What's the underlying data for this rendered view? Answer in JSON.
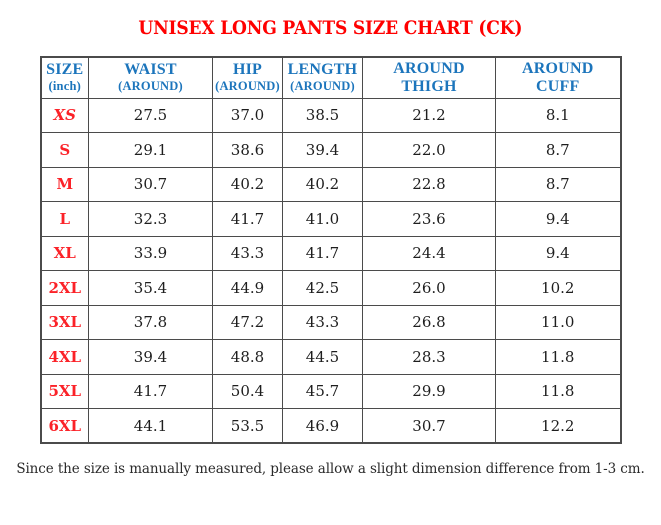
{
  "title": "UNISEX LONG PANTS SIZE CHART (CK)",
  "footer_note": "Since the size is manually measured, please allow a slight dimension difference from 1-3 cm.",
  "colors": {
    "title_red": "#ff0000",
    "size_red": "#fb2228",
    "header_blue": "#1c75bc",
    "border_gray": "#4b4b4b",
    "body_text": "#1e1e1e",
    "footer_text": "#2a2a2a"
  },
  "table": {
    "columns": [
      "size",
      "waist",
      "hip",
      "length",
      "around_thigh",
      "around_cuff"
    ],
    "headers": [
      {
        "line1": "SIZE",
        "line2": "(inch)",
        "sub_small": true
      },
      {
        "line1": "WAIST",
        "line2": "(AROUND)",
        "sub_small": true
      },
      {
        "line1": "HIP",
        "line2": "(AROUND)",
        "sub_small": true
      },
      {
        "line1": "LENGTH",
        "line2": "(AROUND)",
        "sub_small": true
      },
      {
        "line1": "AROUND",
        "line2": "THIGH",
        "sub_small": false
      },
      {
        "line1": "AROUND",
        "line2": "CUFF",
        "sub_small": false
      }
    ],
    "rows": [
      {
        "size": "XS",
        "italic": true,
        "values": [
          "27.5",
          "37.0",
          "38.5",
          "21.2",
          "8.1"
        ]
      },
      {
        "size": "S",
        "italic": false,
        "values": [
          "29.1",
          "38.6",
          "39.4",
          "22.0",
          "8.7"
        ]
      },
      {
        "size": "M",
        "italic": false,
        "values": [
          "30.7",
          "40.2",
          "40.2",
          "22.8",
          "8.7"
        ]
      },
      {
        "size": "L",
        "italic": false,
        "values": [
          "32.3",
          "41.7",
          "41.0",
          "23.6",
          "9.4"
        ]
      },
      {
        "size": "XL",
        "italic": false,
        "values": [
          "33.9",
          "43.3",
          "41.7",
          "24.4",
          "9.4"
        ]
      },
      {
        "size": "2XL",
        "italic": false,
        "values": [
          "35.4",
          "44.9",
          "42.5",
          "26.0",
          "10.2"
        ]
      },
      {
        "size": "3XL",
        "italic": false,
        "values": [
          "37.8",
          "47.2",
          "43.3",
          "26.8",
          "11.0"
        ]
      },
      {
        "size": "4XL",
        "italic": false,
        "values": [
          "39.4",
          "48.8",
          "44.5",
          "28.3",
          "11.8"
        ]
      },
      {
        "size": "5XL",
        "italic": false,
        "values": [
          "41.7",
          "50.4",
          "45.7",
          "29.9",
          "11.8"
        ]
      },
      {
        "size": "6XL",
        "italic": false,
        "values": [
          "44.1",
          "53.5",
          "46.9",
          "30.7",
          "12.2"
        ]
      }
    ]
  },
  "chart_data": {
    "type": "table",
    "title": "UNISEX LONG PANTS SIZE CHART (CK)",
    "unit": "inch",
    "columns": [
      "SIZE (inch)",
      "WAIST (AROUND)",
      "HIP (AROUND)",
      "LENGTH (AROUND)",
      "AROUND THIGH",
      "AROUND CUFF"
    ],
    "rows": [
      [
        "XS",
        27.5,
        37.0,
        38.5,
        21.2,
        8.1
      ],
      [
        "S",
        29.1,
        38.6,
        39.4,
        22.0,
        8.7
      ],
      [
        "M",
        30.7,
        40.2,
        40.2,
        22.8,
        8.7
      ],
      [
        "L",
        32.3,
        41.7,
        41.0,
        23.6,
        9.4
      ],
      [
        "XL",
        33.9,
        43.3,
        41.7,
        24.4,
        9.4
      ],
      [
        "2XL",
        35.4,
        44.9,
        42.5,
        26.0,
        10.2
      ],
      [
        "3XL",
        37.8,
        47.2,
        43.3,
        26.8,
        11.0
      ],
      [
        "4XL",
        39.4,
        48.8,
        44.5,
        28.3,
        11.8
      ],
      [
        "5XL",
        41.7,
        50.4,
        45.7,
        29.9,
        11.8
      ],
      [
        "6XL",
        44.1,
        53.5,
        46.9,
        30.7,
        12.2
      ]
    ],
    "note": "Since the size is manually measured, please allow a slight dimension difference from 1-3 cm."
  }
}
